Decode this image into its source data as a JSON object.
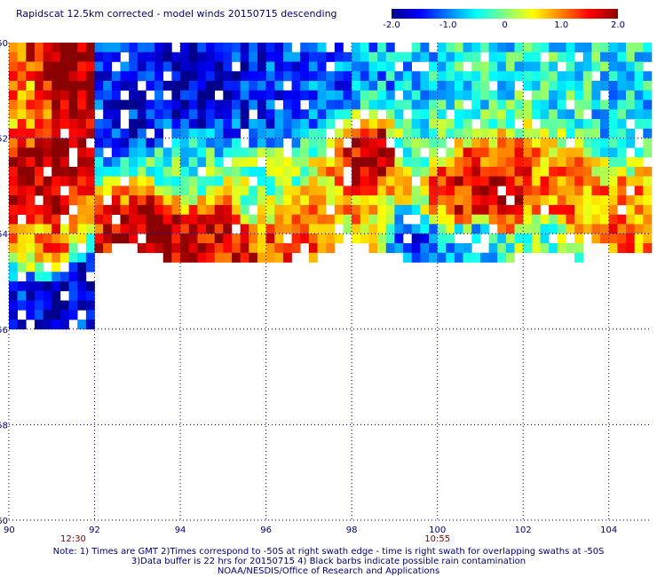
{
  "title": "Rapidscat 12.5km corrected - model winds 20150715 descending",
  "colorbar": {
    "colors": [
      "#00008b",
      "#0000ff",
      "#0080ff",
      "#00ffff",
      "#80ff80",
      "#ffff00",
      "#ff8000",
      "#ff0000",
      "#8b0000"
    ],
    "ticks": [
      {
        "value": -2.0,
        "label": "-2.0"
      },
      {
        "value": -1.0,
        "label": "-1.0"
      },
      {
        "value": 0,
        "label": "0"
      },
      {
        "value": 1.0,
        "label": "1.0"
      },
      {
        "value": 2.0,
        "label": "2.0"
      }
    ],
    "range": [
      -2.0,
      2.0
    ]
  },
  "chart_data": {
    "type": "heatmap",
    "title": "Rapidscat 12.5km corrected - model winds 20150715 descending",
    "xlabel": "",
    "ylabel": "",
    "xlim": [
      90,
      105
    ],
    "ylim": [
      -60,
      -50
    ],
    "x_ticks": [
      {
        "value": 90,
        "label": "90"
      },
      {
        "value": 92,
        "label": "92"
      },
      {
        "value": 94,
        "label": "94"
      },
      {
        "value": 96,
        "label": "96"
      },
      {
        "value": 98,
        "label": "98"
      },
      {
        "value": 100,
        "label": "100"
      },
      {
        "value": 102,
        "label": "102"
      },
      {
        "value": 104,
        "label": "104"
      }
    ],
    "y_ticks": [
      {
        "value": -50,
        "label": "-50"
      },
      {
        "value": -52,
        "label": "-52"
      },
      {
        "value": -54,
        "label": "-54"
      },
      {
        "value": -56,
        "label": "-56"
      },
      {
        "value": -58,
        "label": "-58"
      },
      {
        "value": -60,
        "label": "-60"
      }
    ],
    "grid": "dotted",
    "value_range": [
      -2.0,
      2.0
    ],
    "cell_size_deg": 0.2,
    "time_labels": [
      {
        "x": 91.5,
        "label": "12:30"
      },
      {
        "x": 100.0,
        "label": "10:55"
      }
    ],
    "swaths": [
      {
        "name": "12:30",
        "lon": [
          90.0,
          92.0
        ],
        "lat_top": -50.0,
        "lat_bottom": -56.0,
        "features": [
          {
            "lon": 90.6,
            "lat": -53.2,
            "value": 1.9
          },
          {
            "lon": 91.2,
            "lat": -52.4,
            "value": 2.0
          },
          {
            "lon": 91.5,
            "lat": -51.0,
            "value": 2.0
          },
          {
            "lon": 91.0,
            "lat": -54.4,
            "value": 1.2
          },
          {
            "lon": 90.4,
            "lat": -54.2,
            "value": 0.8
          },
          {
            "lon": 91.0,
            "lat": -55.4,
            "value": -1.8
          },
          {
            "lon": 90.4,
            "lat": -55.2,
            "value": -1.5
          },
          {
            "lon": 91.6,
            "lat": -55.0,
            "value": -1.6
          },
          {
            "lon": 90.3,
            "lat": -51.4,
            "value": 0.9
          }
        ]
      },
      {
        "name": "10:55",
        "lon": [
          92.0,
          105.0
        ],
        "lat_top": -50.0,
        "lat_bottom": -54.5,
        "features": [
          {
            "lon": 93.0,
            "lat": -51.5,
            "value": -1.5
          },
          {
            "lon": 94.5,
            "lat": -51.0,
            "value": -1.8
          },
          {
            "lon": 96.0,
            "lat": -51.2,
            "value": -1.4
          },
          {
            "lon": 97.5,
            "lat": -51.0,
            "value": -1.2
          },
          {
            "lon": 99.0,
            "lat": -50.8,
            "value": -0.8
          },
          {
            "lon": 101.0,
            "lat": -50.7,
            "value": -0.5
          },
          {
            "lon": 103.0,
            "lat": -50.8,
            "value": -0.4
          },
          {
            "lon": 104.2,
            "lat": -51.5,
            "value": -0.6
          },
          {
            "lon": 98.5,
            "lat": -52.3,
            "value": 1.8
          },
          {
            "lon": 100.5,
            "lat": -53.1,
            "value": 1.5
          },
          {
            "lon": 101.5,
            "lat": -53.3,
            "value": 1.7
          },
          {
            "lon": 103.0,
            "lat": -53.2,
            "value": 1.0
          },
          {
            "lon": 104.3,
            "lat": -53.8,
            "value": 1.0
          },
          {
            "lon": 93.5,
            "lat": -53.9,
            "value": 2.0
          },
          {
            "lon": 95.0,
            "lat": -54.2,
            "value": 1.6
          },
          {
            "lon": 96.5,
            "lat": -54.2,
            "value": 1.2
          },
          {
            "lon": 98.0,
            "lat": -54.0,
            "value": 0.7
          },
          {
            "lon": 99.5,
            "lat": -54.3,
            "value": -1.2
          },
          {
            "lon": 101.0,
            "lat": -54.3,
            "value": -0.8
          },
          {
            "lon": 102.5,
            "lat": -54.3,
            "value": -0.2
          },
          {
            "lon": 96.0,
            "lat": -53.1,
            "value": 0.0
          },
          {
            "lon": 94.0,
            "lat": -52.7,
            "value": -0.3
          },
          {
            "lon": 99.5,
            "lat": -52.0,
            "value": -0.4
          }
        ]
      }
    ]
  },
  "notes": {
    "line1": "Note: 1) Times are GMT 2)Times correspond to -50S at right swath edge - time is right swath for overlapping swaths at -50S",
    "line2": "3)Data buffer is 22 hrs for 20150715 4) Black barbs indicate possible rain contamination",
    "line3": "NOAA/NESDIS/Office of Research and Applications"
  }
}
